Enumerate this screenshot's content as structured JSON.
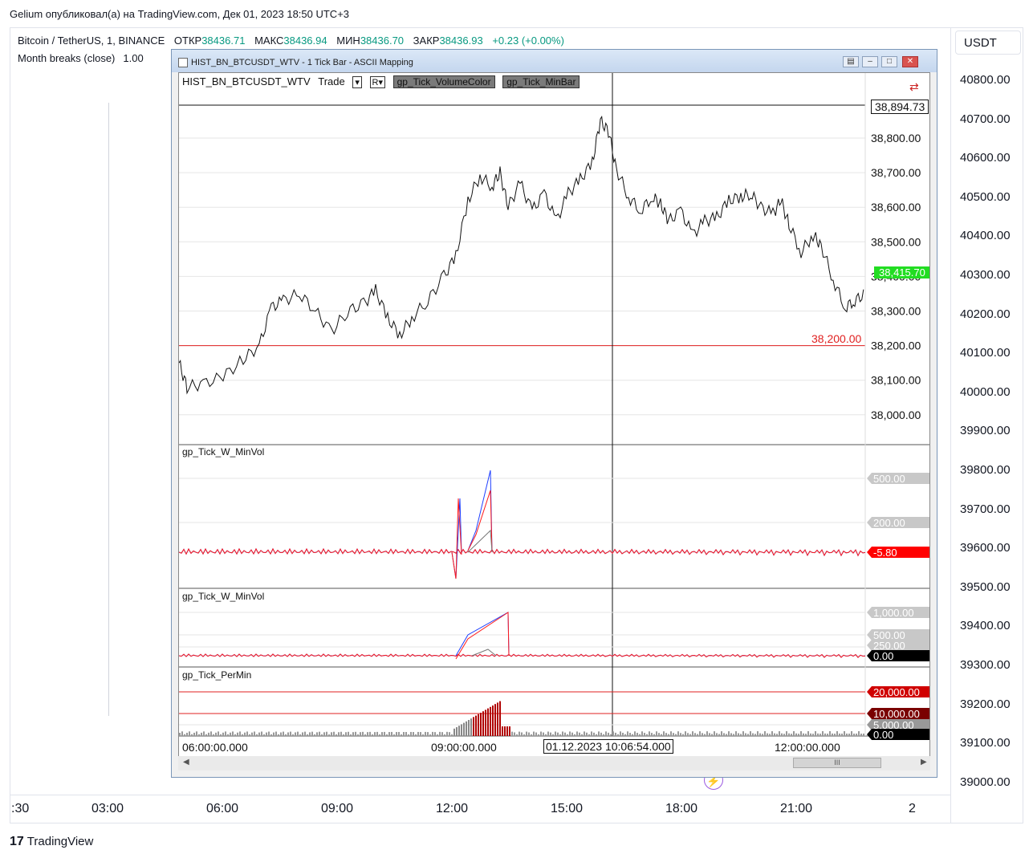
{
  "header": {
    "publisher": "Gelium опубликовал(а) на TradingView.com, Дек 01, 2023 18:50 UTC+3"
  },
  "symbol": {
    "name": "Bitcoin / TetherUS, 1, BINANCE",
    "open_label": "ОТКР",
    "open": "38436.71",
    "high_label": "МАКС",
    "high": "38436.94",
    "low_label": "МИН",
    "low": "38436.70",
    "close_label": "ЗАКР",
    "close": "38436.93",
    "change": "+0.23 (+0.00%)"
  },
  "indicator": {
    "name": "Month breaks (close)",
    "value": "1.00"
  },
  "currency": "USDT",
  "right_axis": [
    "40800.00",
    "40700.00",
    "40600.00",
    "40500.00",
    "40400.00",
    "40300.00",
    "40200.00",
    "40100.00",
    "40000.00",
    "39900.00",
    "39800.00",
    "39700.00",
    "39600.00",
    "39500.00",
    "39400.00",
    "39300.00",
    "39200.00",
    "39100.00",
    "39000.00"
  ],
  "time_axis": [
    ":30",
    "03:00",
    "06:00",
    "09:00",
    "12:00",
    "15:00",
    "18:00",
    "21:00",
    "2"
  ],
  "brand": "TradingView",
  "window": {
    "title": "HIST_BN_BTCUSDT_WTV - 1 Tick Bar - ASCII Mapping",
    "chart_name": "HIST_BN_BTCUSDT_WTV",
    "mode": "Trade",
    "dropdown_a": "▾",
    "dropdown_b": "R▾",
    "tag1": "gp_Tick_VolumeColor",
    "tag2": "gp_Tick_MinBar",
    "price_ticks": [
      "38,800.00",
      "38,700.00",
      "38,600.00",
      "38,500.00",
      "38,400.00",
      "38,300.00",
      "38,200.00",
      "38,100.00",
      "38,000.00"
    ],
    "top_price": "38,894.73",
    "current_price": "38,415.70",
    "level_price": "38,200.00",
    "pane1": {
      "label": "gp_Tick_W_MinVol",
      "badges": [
        "500.00",
        "200.00",
        "-5.80"
      ]
    },
    "pane2": {
      "label": "gp_Tick_W_MinVol",
      "badges": [
        "1,000.00",
        "500.00",
        "250.00",
        "0.00"
      ]
    },
    "pane3": {
      "label": "gp_Tick_PerMin",
      "badges": [
        "20,000.00",
        "10,000.00",
        "5,000.00",
        "0.00"
      ]
    },
    "time_labels": [
      "06:00:00.000",
      "09:00:00.000",
      "12:00:00.000"
    ],
    "cursor_time": "01.12.2023 10:06:54.000"
  },
  "colors": {
    "up": "#089981",
    "buy": "#1f3fff",
    "sell": "#ff1a1a",
    "level": "#e02020",
    "badge_green": "#22dd22"
  }
}
